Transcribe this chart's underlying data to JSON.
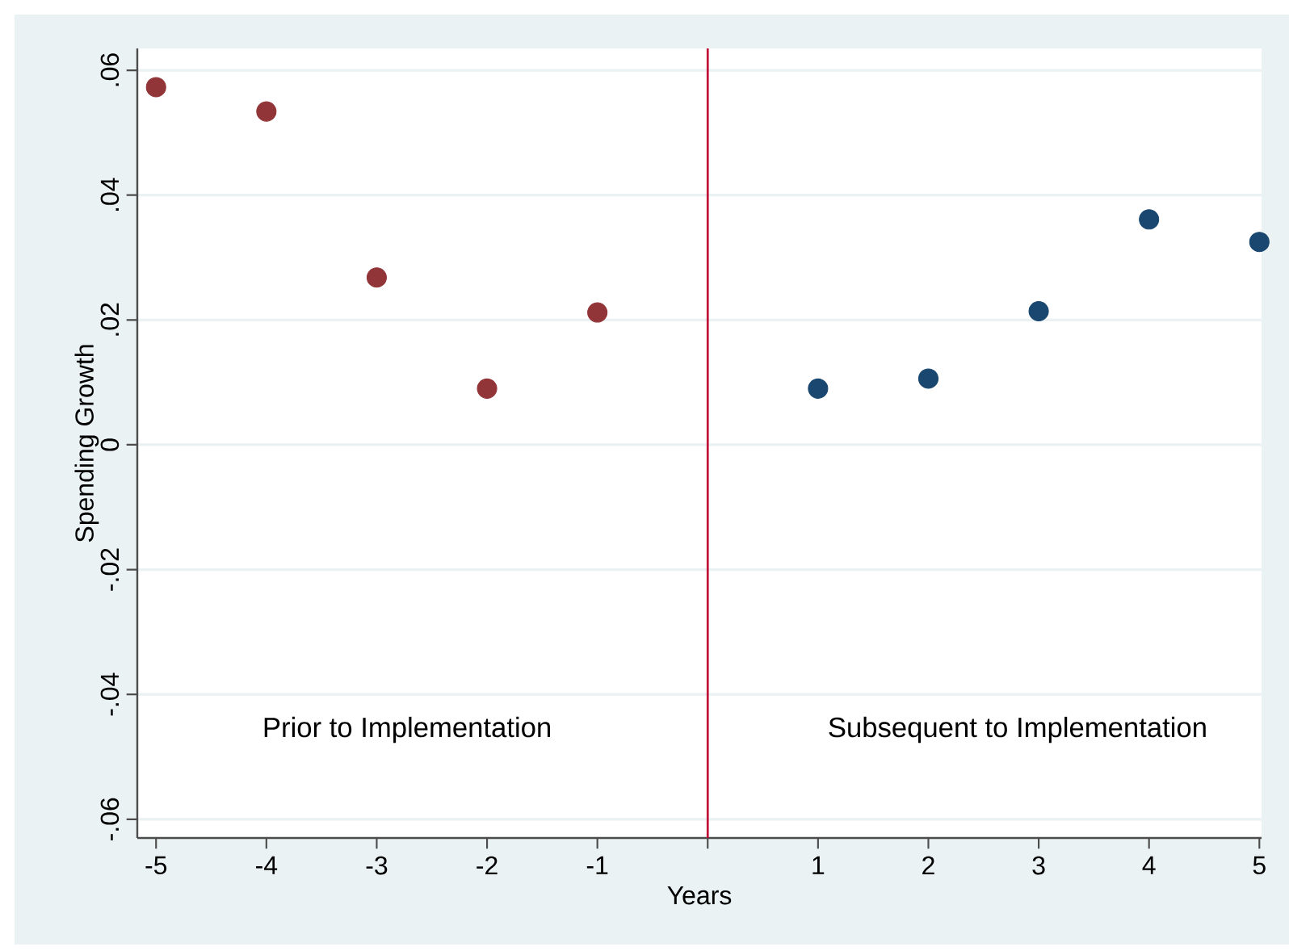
{
  "chart_data": {
    "type": "scatter",
    "xlabel": "Years",
    "ylabel": "Spending Growth",
    "series": [
      {
        "color": "#923538",
        "x": [
          -5,
          -4,
          -3,
          -2,
          -1
        ],
        "values": [
          0.0573,
          0.0534,
          0.0268,
          0.009,
          0.0212
        ]
      },
      {
        "color": "#1a476f",
        "x": [
          1,
          2,
          3,
          4,
          5
        ],
        "values": [
          0.009,
          0.0106,
          0.0214,
          0.0361,
          0.0325
        ]
      }
    ],
    "xlim": [
      -5.17,
      5.02
    ],
    "ylim": [
      -0.063,
      0.0635
    ],
    "xticks": [
      -5,
      -4,
      -3,
      -2,
      -1,
      {
        "value": 0,
        "label": null
      },
      1,
      2,
      3,
      4,
      5
    ],
    "yticks": [
      {
        "value": -0.06,
        "label": "-.06"
      },
      {
        "value": -0.04,
        "label": "-.04"
      },
      {
        "value": -0.02,
        "label": "-.02"
      },
      0,
      {
        "value": 0.02,
        "label": ".02"
      },
      {
        "value": 0.04,
        "label": ".04"
      },
      {
        "value": 0.06,
        "label": ".06"
      }
    ],
    "ref_lines": [
      {
        "axis": "x",
        "value": 0,
        "color": "#c10534"
      }
    ],
    "annotations": [
      "Prior to Implementation",
      "Subsequent to Implementation"
    ],
    "grid": "y",
    "marker": "circle"
  }
}
